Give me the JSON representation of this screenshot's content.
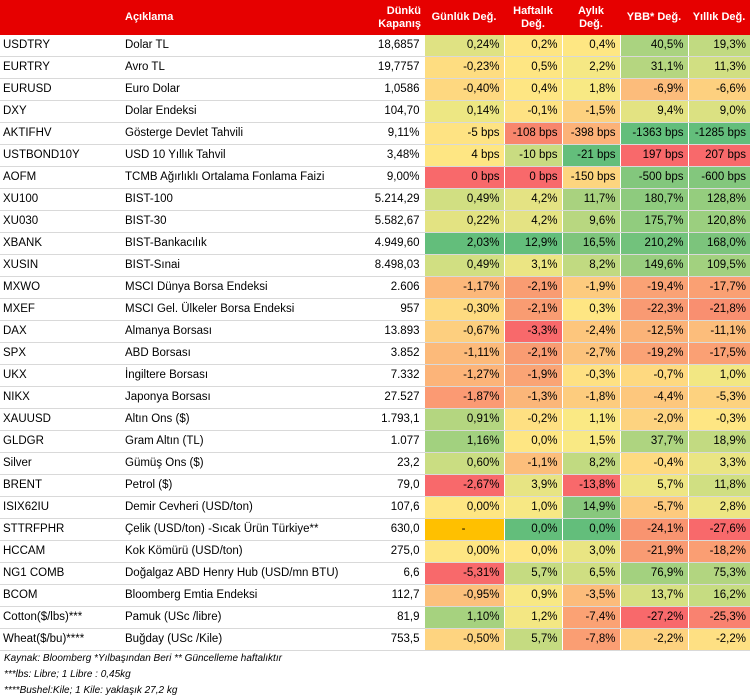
{
  "header": {
    "aciklama": "Açıklama",
    "kapanis_line1": "Dünkü",
    "kapanis_line2": "Kapanış",
    "gunluk": "Günlük Değ.",
    "haftalik_line1": "Haftalık",
    "haftalik_line2": "Değ.",
    "aylik_line1": "Aylık",
    "aylik_line2": "Değ.",
    "ybb": "YBB* Değ.",
    "yillik": "Yıllık Değ."
  },
  "rows": [
    {
      "code": "USDTRY",
      "desc": "Dolar TL",
      "close": "18,6857",
      "d": "0,24%",
      "w": "0,2%",
      "m": "0,4%",
      "ytd": "40,5%",
      "y": "19,3%",
      "colors": [
        "#dfe283",
        "#fee583",
        "#fee783",
        "#aad380",
        "#c1da81"
      ]
    },
    {
      "code": "EURTRY",
      "desc": "Avro TL",
      "close": "19,7757",
      "d": "-0,23%",
      "w": "0,5%",
      "m": "2,2%",
      "ytd": "31,1%",
      "y": "11,3%",
      "colors": [
        "#fedd81",
        "#fee683",
        "#f5e884",
        "#b5d680",
        "#d1df82"
      ]
    },
    {
      "code": "EURUSD",
      "desc": "Euro Dolar",
      "close": "1,0586",
      "d": "-0,40%",
      "w": "0,4%",
      "m": "1,8%",
      "ytd": "-6,9%",
      "y": "-6,6%",
      "colors": [
        "#fed880",
        "#fee683",
        "#f8e984",
        "#fcbc7b",
        "#fdd07f"
      ]
    },
    {
      "code": "DXY",
      "desc": "Dolar Endeksi",
      "close": "104,70",
      "d": "0,14%",
      "w": "-0,1%",
      "m": "-1,5%",
      "ytd": "9,4%",
      "y": "9,0%",
      "colors": [
        "#ede783",
        "#fee283",
        "#fdd17f",
        "#e3e382",
        "#dbe182"
      ]
    },
    {
      "code": "AKTIFHV",
      "desc": "Gösterge Devlet Tahvili",
      "close": "9,11%",
      "d": "-5 bps",
      "w": "-108 bps",
      "m": "-398 bps",
      "ytd": "-1363 bps",
      "y": "-1285 bps",
      "colors": [
        "#fee383",
        "#f8866d",
        "#fcb278",
        "#63be7b",
        "#63be7b"
      ]
    },
    {
      "code": "USTBOND10Y",
      "desc": "USD 10 Yıllık Tahvil",
      "close": "3,48%",
      "d": "4 bps",
      "w": "-10 bps",
      "m": "-21 bps",
      "ytd": "197 bps",
      "y": "207 bps",
      "colors": [
        "#fee683",
        "#c9dc81",
        "#63be7b",
        "#f8696b",
        "#f8696b"
      ]
    },
    {
      "code": "AOFM",
      "desc": "TCMB Ağırlıklı Ortalama Fonlama Faizi",
      "close": "9,00%",
      "d": "0 bps",
      "w": "0 bps",
      "m": "-150 bps",
      "ytd": "-500 bps",
      "y": "-600 bps",
      "colors": [
        "#f8696b",
        "#f8696b",
        "#fdd57f",
        "#83c77d",
        "#83c77d"
      ]
    },
    {
      "code": "XU100",
      "desc": "BIST-100",
      "close": "5.214,29",
      "d": "0,49%",
      "w": "4,2%",
      "m": "11,7%",
      "ytd": "180,7%",
      "y": "128,8%",
      "colors": [
        "#d1df82",
        "#e4e383",
        "#a9d27f",
        "#8ecb7e",
        "#95cd7e"
      ]
    },
    {
      "code": "XU030",
      "desc": "BIST-30",
      "close": "5.582,67",
      "d": "0,22%",
      "w": "4,2%",
      "m": "9,6%",
      "ytd": "175,7%",
      "y": "120,8%",
      "colors": [
        "#e3e382",
        "#e4e383",
        "#b8d780",
        "#91cc7e",
        "#9bcf7f"
      ]
    },
    {
      "code": "XBANK",
      "desc": "BIST-Bankacılık",
      "close": "4.949,60",
      "d": "2,03%",
      "w": "12,9%",
      "m": "16,5%",
      "ytd": "210,2%",
      "y": "168,0%",
      "colors": [
        "#63be7b",
        "#63be7b",
        "#7ec57c",
        "#72c27c",
        "#7cc47c"
      ]
    },
    {
      "code": "XUSIN",
      "desc": "BIST-Sınai",
      "close": "8.498,03",
      "d": "0,49%",
      "w": "3,1%",
      "m": "8,2%",
      "ytd": "149,6%",
      "y": "109,5%",
      "colors": [
        "#d1df82",
        "#ebe583",
        "#c1da81",
        "#99ce7f",
        "#a2d17f"
      ]
    },
    {
      "code": "MXWO",
      "desc": "MSCI Dünya Borsa Endeksi",
      "close": "2.606",
      "d": "-1,17%",
      "w": "-2,1%",
      "m": "-1,9%",
      "ytd": "-19,4%",
      "y": "-17,7%",
      "colors": [
        "#fcb87a",
        "#f99c72",
        "#fdcb7e",
        "#faa275",
        "#faa073"
      ]
    },
    {
      "code": "MXEF",
      "desc": "MSCI Gel. Ülkeler Borsa Endeksi",
      "close": "957",
      "d": "-0,30%",
      "w": "-2,1%",
      "m": "0,3%",
      "ytd": "-22,3%",
      "y": "-21,8%",
      "colors": [
        "#fedb81",
        "#f99c72",
        "#fee683",
        "#f99a73",
        "#f98f70"
      ]
    },
    {
      "code": "DAX",
      "desc": "Almanya Borsası",
      "close": "13.893",
      "d": "-0,67%",
      "w": "-3,3%",
      "m": "-2,4%",
      "ytd": "-12,5%",
      "y": "-11,1%",
      "colors": [
        "#fdcf7f",
        "#f8696b",
        "#fdc67d",
        "#fbb378",
        "#fcbd7b"
      ]
    },
    {
      "code": "SPX",
      "desc": "ABD Borsası",
      "close": "3.852",
      "d": "-1,11%",
      "w": "-2,1%",
      "m": "-2,7%",
      "ytd": "-19,2%",
      "y": "-17,5%",
      "colors": [
        "#fcba7a",
        "#f99c72",
        "#fcc37c",
        "#faa275",
        "#faa074"
      ]
    },
    {
      "code": "UKX",
      "desc": "İngiltere Borsası",
      "close": "7.332",
      "d": "-1,27%",
      "w": "-1,9%",
      "m": "-0,3%",
      "ytd": "-0,7%",
      "y": "1,0%",
      "colors": [
        "#fcb479",
        "#faa475",
        "#fee183",
        "#fed980",
        "#f2e783"
      ]
    },
    {
      "code": "NIKX",
      "desc": "Japonya Borsası",
      "close": "27.527",
      "d": "-1,87%",
      "w": "-1,3%",
      "m": "-1,8%",
      "ytd": "-4,4%",
      "y": "-5,3%",
      "colors": [
        "#fb9a73",
        "#fbb679",
        "#fdcc7e",
        "#fdc77d",
        "#fdd27f"
      ]
    },
    {
      "code": "XAUUSD",
      "desc": "Altın Ons ($)",
      "close": "1.793,1",
      "d": "0,91%",
      "w": "-0,2%",
      "m": "1,1%",
      "ytd": "-2,0%",
      "y": "-0,3%",
      "colors": [
        "#b4d680",
        "#fee082",
        "#fae984",
        "#fdd380",
        "#fee683"
      ]
    },
    {
      "code": "GLDGR",
      "desc": "Gram Altın (TL)",
      "close": "1.077",
      "d": "1,16%",
      "w": "0,0%",
      "m": "1,5%",
      "ytd": "37,7%",
      "y": "18,9%",
      "colors": [
        "#a2d17f",
        "#fee683",
        "#f9e984",
        "#aed480",
        "#c2da81"
      ]
    },
    {
      "code": "Silver",
      "desc": "Gümüş Ons ($)",
      "close": "23,2",
      "d": "0,60%",
      "w": "-1,1%",
      "m": "8,2%",
      "ytd": "-0,4%",
      "y": "3,3%",
      "colors": [
        "#cadd82",
        "#fcbe7b",
        "#c1da81",
        "#feda81",
        "#eae583"
      ]
    },
    {
      "code": "BRENT",
      "desc": "Petrol ($)",
      "close": "79,0",
      "d": "-2,67%",
      "w": "3,9%",
      "m": "-13,8%",
      "ytd": "5,7%",
      "y": "11,8%",
      "colors": [
        "#f8696b",
        "#e7e483",
        "#f8696b",
        "#eee684",
        "#d0df82"
      ]
    },
    {
      "code": "ISIX62IU",
      "desc": "Demir Cevheri (USD/ton)",
      "close": "107,6",
      "d": "0,00%",
      "w": "1,0%",
      "m": "14,9%",
      "ytd": "-5,7%",
      "y": "2,8%",
      "colors": [
        "#fee683",
        "#f7e884",
        "#88c87d",
        "#fdca7e",
        "#ede683"
      ]
    },
    {
      "code": "STTRFPHR",
      "desc": "Çelik (USD/ton) -Sıcak Ürün Türkiye**",
      "close": "630,0",
      "d": "-",
      "w": "0,0%",
      "m": "0,0%",
      "ytd": "-24,1%",
      "y": "-27,6%",
      "colors": [
        "#ffc000",
        "#63be7b",
        "#63be7b",
        "#f99470",
        "#f8696b"
      ]
    },
    {
      "code": "HCCAM",
      "desc": "Kok Kömürü (USD/ton)",
      "close": "275,0",
      "d": "0,00%",
      "w": "0,0%",
      "m": "3,0%",
      "ytd": "-21,9%",
      "y": "-18,2%",
      "colors": [
        "#fee683",
        "#fee683",
        "#e9e583",
        "#f99b73",
        "#fa9e73"
      ]
    },
    {
      "code": "NG1 COMB",
      "desc": "Doğalgaz ABD Henry Hub (USD/mn BTU)",
      "close": "6,6",
      "d": "-5,31%",
      "w": "5,7%",
      "m": "6,5%",
      "ytd": "76,9%",
      "y": "75,3%",
      "colors": [
        "#f8696b",
        "#c5db81",
        "#cfde82",
        "#a3d17f",
        "#b2d580"
      ]
    },
    {
      "code": "BCOM",
      "desc": "Bloomberg Emtia Endeksi",
      "close": "112,7",
      "d": "-0,95%",
      "w": "0,9%",
      "m": "-3,5%",
      "ytd": "13,7%",
      "y": "16,2%",
      "colors": [
        "#fcc07c",
        "#f8e884",
        "#fcbc7b",
        "#d6e082",
        "#c6dc81"
      ]
    },
    {
      "code": "Cotton($/lbs)***",
      "desc": "Pamuk (USc /libre)",
      "close": "81,9",
      "d": "1,10%",
      "w": "1,2%",
      "m": "-7,4%",
      "ytd": "-27,2%",
      "y": "-25,3%",
      "colors": [
        "#a6d27f",
        "#f3e783",
        "#fba274",
        "#f8696b",
        "#f98270"
      ]
    },
    {
      "code": "Wheat($/bu)****",
      "desc": "Buğday (USc /Kile)",
      "close": "753,5",
      "d": "-0,50%",
      "w": "5,7%",
      "m": "-7,8%",
      "ytd": "-2,2%",
      "y": "-2,2%",
      "colors": [
        "#fed480",
        "#c5db81",
        "#fa9e73",
        "#fdd27f",
        "#fee083"
      ]
    }
  ],
  "notes": [
    "Kaynak: Bloomberg *Yılbaşından Beri  ** Güncelleme haftalıktır",
    "***lbs: Libre; 1 Libre : 0,45kg",
    "****Bushel:Kile; 1 Kile: yaklaşık 27,2 kg"
  ]
}
